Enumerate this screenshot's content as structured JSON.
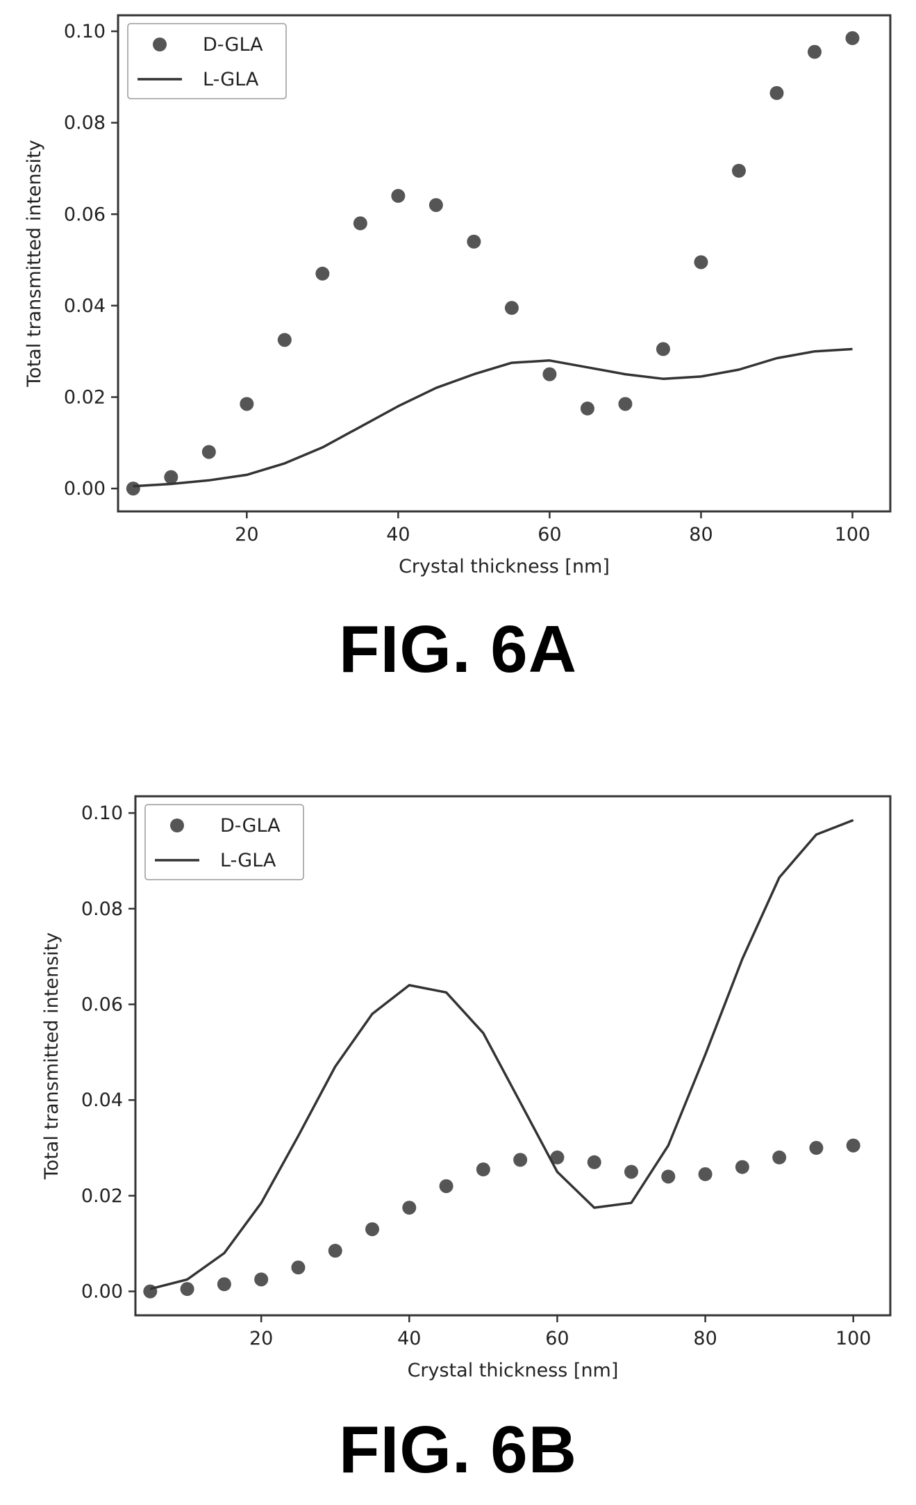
{
  "chart_data": [
    {
      "type": "scatter",
      "caption": "FIG. 6A",
      "title": "",
      "xlabel": "Crystal thickness [nm]",
      "ylabel": "Total transmitted intensity",
      "xlim": [
        3,
        105
      ],
      "ylim": [
        -0.005,
        0.1035
      ],
      "xticks": [
        20,
        40,
        60,
        80,
        100
      ],
      "yticks": [
        0.0,
        0.02,
        0.04,
        0.06,
        0.08,
        0.1
      ],
      "ytick_labels": [
        "0.00",
        "0.02",
        "0.04",
        "0.06",
        "0.08",
        "0.10"
      ],
      "legend_position": "top-left",
      "grid": false,
      "x": [
        5,
        10,
        15,
        20,
        25,
        30,
        35,
        40,
        45,
        50,
        55,
        60,
        65,
        70,
        75,
        80,
        85,
        90,
        95,
        100
      ],
      "series": [
        {
          "name": "D-GLA",
          "mark": "markers",
          "color": "#555555",
          "values": [
            0.0,
            0.0025,
            0.008,
            0.0185,
            0.0325,
            0.047,
            0.058,
            0.064,
            0.062,
            0.054,
            0.0395,
            0.025,
            0.0175,
            0.0185,
            0.0305,
            0.0495,
            0.0695,
            0.0865,
            0.0955,
            0.0985
          ]
        },
        {
          "name": "L-GLA",
          "mark": "line",
          "color": "#333333",
          "values": [
            0.0005,
            0.001,
            0.0018,
            0.003,
            0.0055,
            0.009,
            0.0135,
            0.018,
            0.022,
            0.025,
            0.0275,
            0.028,
            0.0265,
            0.025,
            0.024,
            0.0245,
            0.026,
            0.0285,
            0.03,
            0.0305
          ]
        }
      ]
    },
    {
      "type": "scatter",
      "caption": "FIG. 6B",
      "title": "",
      "xlabel": "Crystal thickness [nm]",
      "ylabel": "Total transmitted intensity",
      "xlim": [
        3,
        105
      ],
      "ylim": [
        -0.005,
        0.1035
      ],
      "xticks": [
        20,
        40,
        60,
        80,
        100
      ],
      "yticks": [
        0.0,
        0.02,
        0.04,
        0.06,
        0.08,
        0.1
      ],
      "ytick_labels": [
        "0.00",
        "0.02",
        "0.04",
        "0.06",
        "0.08",
        "0.10"
      ],
      "legend_position": "top-left",
      "grid": false,
      "x": [
        5,
        10,
        15,
        20,
        25,
        30,
        35,
        40,
        45,
        50,
        55,
        60,
        65,
        70,
        75,
        80,
        85,
        90,
        95,
        100
      ],
      "series": [
        {
          "name": "D-GLA",
          "mark": "markers",
          "color": "#555555",
          "values": [
            0.0,
            0.0005,
            0.0015,
            0.0025,
            0.005,
            0.0085,
            0.013,
            0.0175,
            0.022,
            0.0255,
            0.0275,
            0.028,
            0.027,
            0.025,
            0.024,
            0.0245,
            0.026,
            0.028,
            0.03,
            0.0305
          ]
        },
        {
          "name": "L-GLA",
          "mark": "line",
          "color": "#333333",
          "values": [
            0.0005,
            0.0025,
            0.008,
            0.0185,
            0.0325,
            0.047,
            0.058,
            0.064,
            0.0625,
            0.054,
            0.0395,
            0.025,
            0.0175,
            0.0185,
            0.0305,
            0.0495,
            0.0695,
            0.0865,
            0.0955,
            0.0985
          ]
        }
      ]
    }
  ]
}
